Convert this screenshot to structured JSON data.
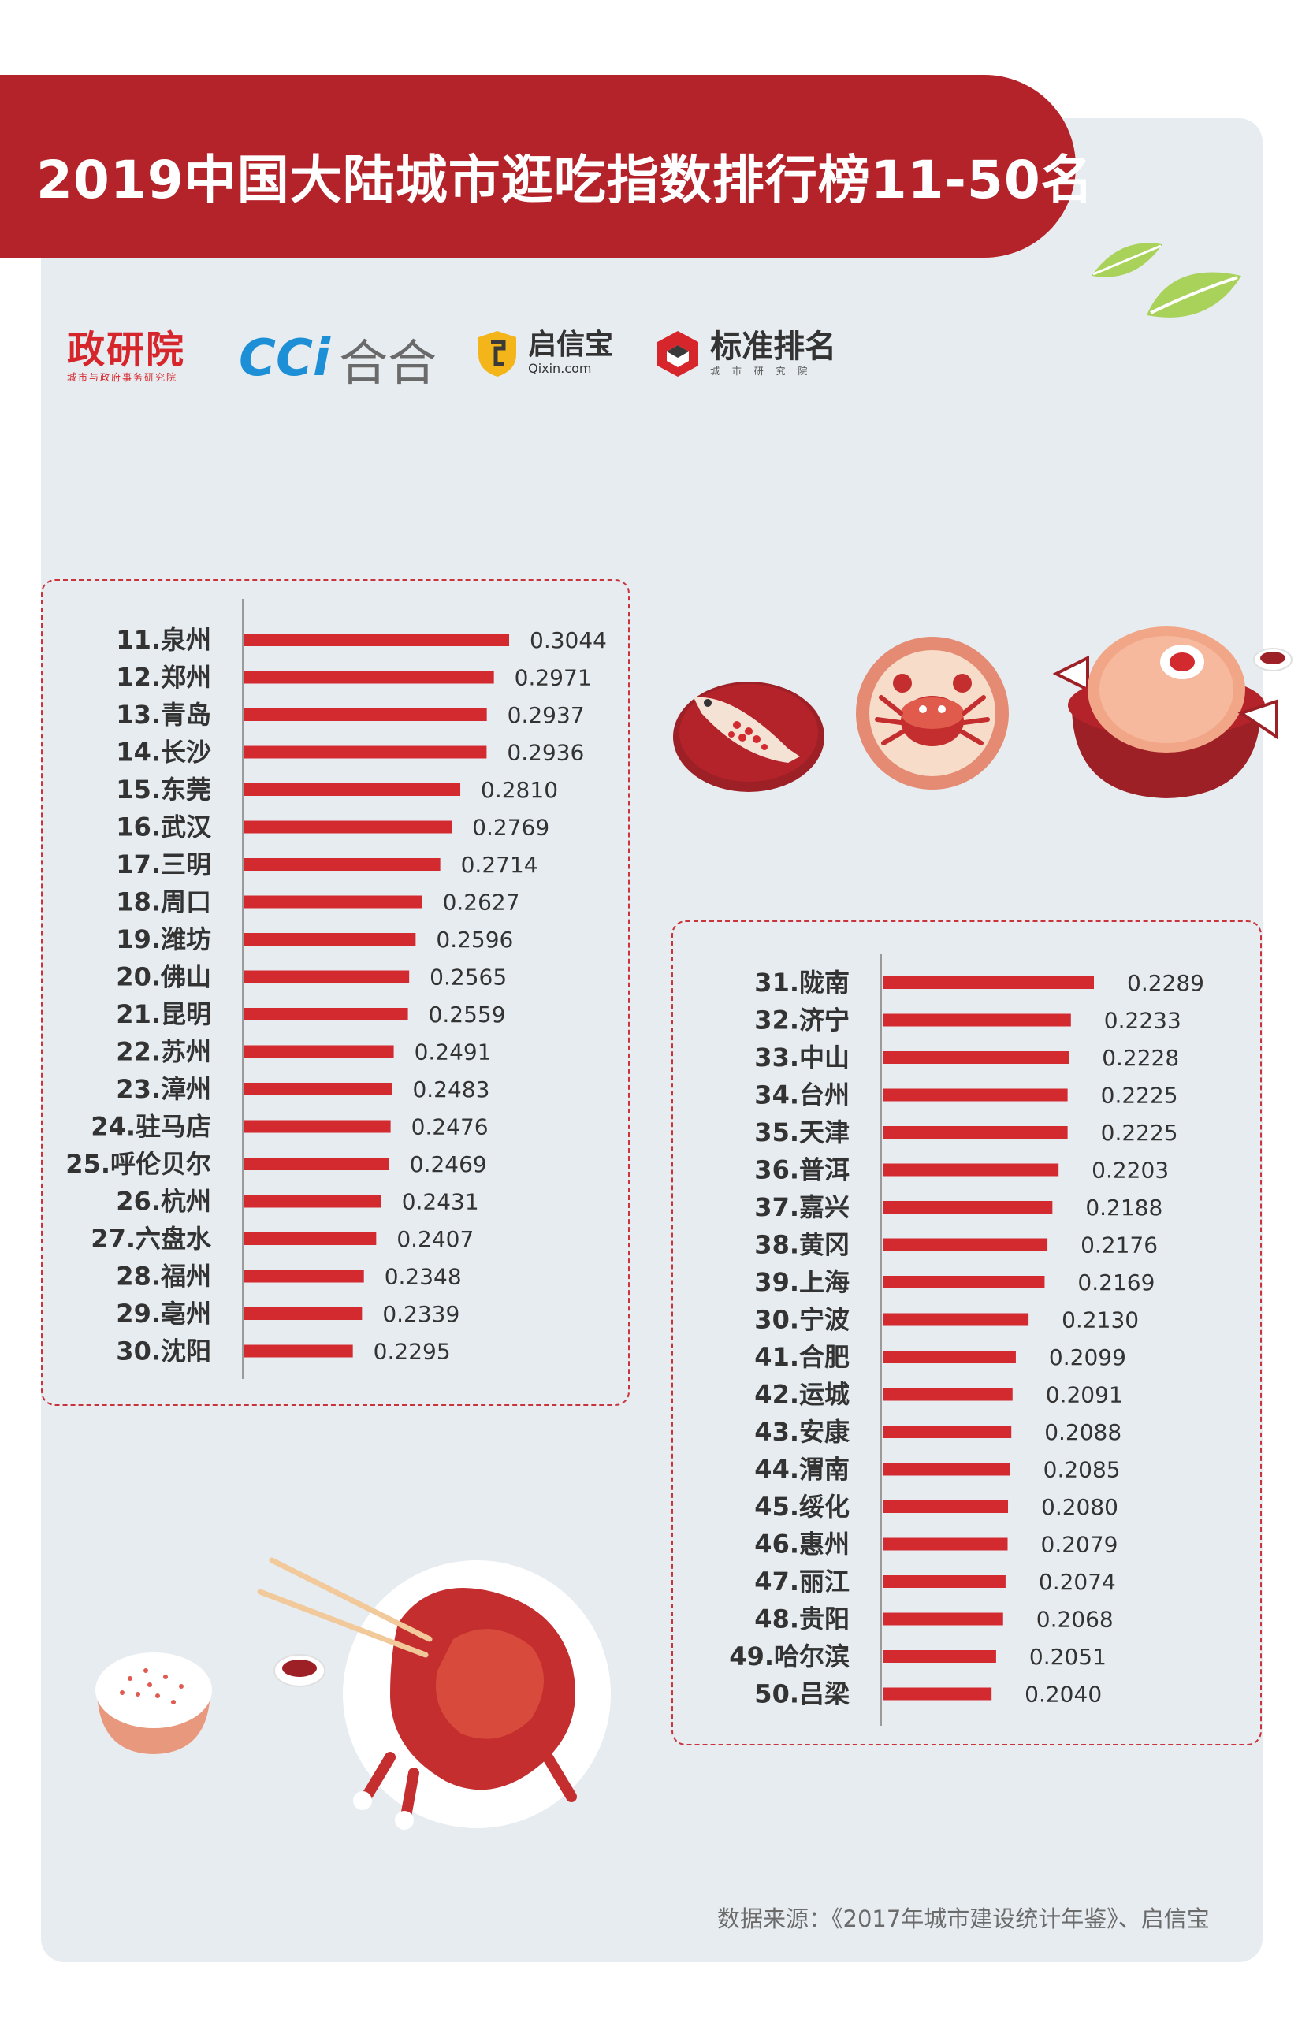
{
  "title": "2019中国大陆城市逛吃指数排行榜11-50名",
  "logos": {
    "zhengyanyuan": {
      "name": "政研院",
      "sub": "城市与政府事务研究院"
    },
    "cci": {
      "mark": "CCi",
      "name": "合合"
    },
    "qixin": {
      "name": "启信宝",
      "sub": "Qixin.com"
    },
    "biaozhun": {
      "name": "标准排名",
      "sub": "城 市 研 究 院"
    }
  },
  "source": "数据来源：《2017年城市建设统计年鉴》、启信宝",
  "colors": {
    "banner": "#b5232a",
    "bar": "#d32a30",
    "panel": "#e7ecf0",
    "border": "#c9343b"
  },
  "chart_data": [
    {
      "type": "bar",
      "orientation": "horizontal",
      "categories": [
        "11.泉州",
        "12.郑州",
        "13.青岛",
        "14.长沙",
        "15.东莞",
        "16.武汉",
        "17.三明",
        "18.周口",
        "19.潍坊",
        "20.佛山",
        "21.昆明",
        "22.苏州",
        "23.漳州",
        "24.驻马店",
        "25.呼伦贝尔",
        "26.杭州",
        "27.六盘水",
        "28.福州",
        "29.亳州",
        "30.沈阳"
      ],
      "values": [
        0.3044,
        0.2971,
        0.2937,
        0.2936,
        0.281,
        0.2769,
        0.2714,
        0.2627,
        0.2596,
        0.2565,
        0.2559,
        0.2491,
        0.2483,
        0.2476,
        0.2469,
        0.2431,
        0.2407,
        0.2348,
        0.2339,
        0.2295
      ],
      "labels": [
        "0.3044",
        "0.2971",
        "0.2937",
        "0.2936",
        "0.2810",
        "0.2769",
        "0.2714",
        "0.2627",
        "0.2596",
        "0.2565",
        "0.2559",
        "0.2491",
        "0.2483",
        "0.2476",
        "0.2469",
        "0.2431",
        "0.2407",
        "0.2348",
        "0.2339",
        "0.2295"
      ],
      "xlim": [
        0.1775,
        0.3044
      ],
      "grid": false,
      "legend": "none"
    },
    {
      "type": "bar",
      "orientation": "horizontal",
      "categories": [
        "31.陇南",
        "32.济宁",
        "33.中山",
        "34.台州",
        "35.天津",
        "36.普洱",
        "37.嘉兴",
        "38.黄冈",
        "39.上海",
        "30.宁波",
        "41.合肥",
        "42.运城",
        "43.安康",
        "44.渭南",
        "45.绥化",
        "46.惠州",
        "47.丽江",
        "48.贵阳",
        "49.哈尔滨",
        "50.吕梁"
      ],
      "values": [
        0.2289,
        0.2233,
        0.2228,
        0.2225,
        0.2225,
        0.2203,
        0.2188,
        0.2176,
        0.2169,
        0.213,
        0.2099,
        0.2091,
        0.2088,
        0.2085,
        0.208,
        0.2079,
        0.2074,
        0.2068,
        0.2051,
        0.204
      ],
      "labels": [
        "0.2289",
        "0.2233",
        "0.2228",
        "0.2225",
        "0.2225",
        "0.2203",
        "0.2188",
        "0.2176",
        "0.2169",
        "0.2130",
        "0.2099",
        "0.2091",
        "0.2088",
        "0.2085",
        "0.2080",
        "0.2079",
        "0.2074",
        "0.2068",
        "0.2051",
        "0.2040"
      ],
      "xlim": [
        0.1775,
        0.2289
      ],
      "grid": false,
      "legend": "none"
    }
  ]
}
